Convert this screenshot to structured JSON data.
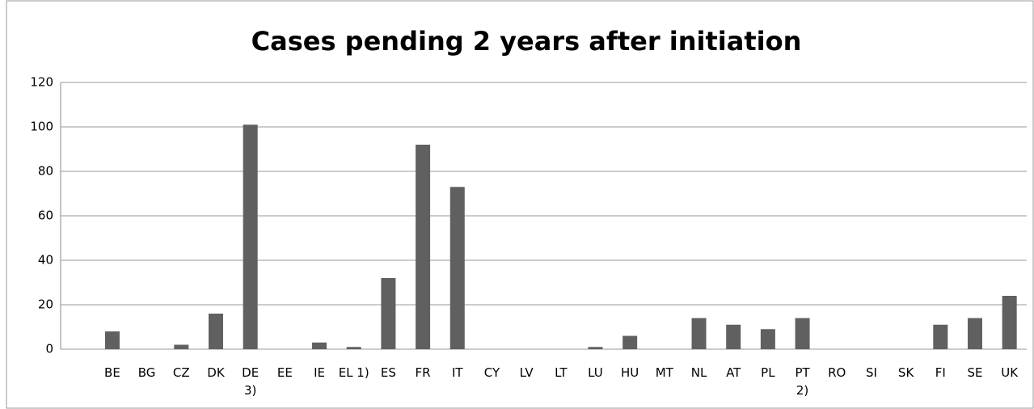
{
  "chart_data": {
    "type": "bar",
    "title": "Cases pending 2 years after initiation",
    "categories": [
      "BE",
      "BG",
      "CZ",
      "DK",
      "DE\n3)",
      "EE",
      "IE",
      "EL 1)",
      "ES",
      "FR",
      "IT",
      "CY",
      "LV",
      "LT",
      "LU",
      "HU",
      "MT",
      "NL",
      "AT",
      "PL",
      "PT\n2)",
      "RO",
      "SI",
      "SK",
      "FI",
      "SE",
      "UK"
    ],
    "values": [
      8,
      0,
      2,
      16,
      101,
      0,
      3,
      1,
      32,
      92,
      73,
      0,
      0,
      0,
      1,
      6,
      0,
      14,
      11,
      9,
      14,
      0,
      0,
      0,
      11,
      14,
      24
    ],
    "color": "#606060",
    "ylim": [
      0,
      120
    ],
    "yticks": [
      0,
      20,
      40,
      60,
      80,
      100,
      120
    ],
    "grid": true
  }
}
